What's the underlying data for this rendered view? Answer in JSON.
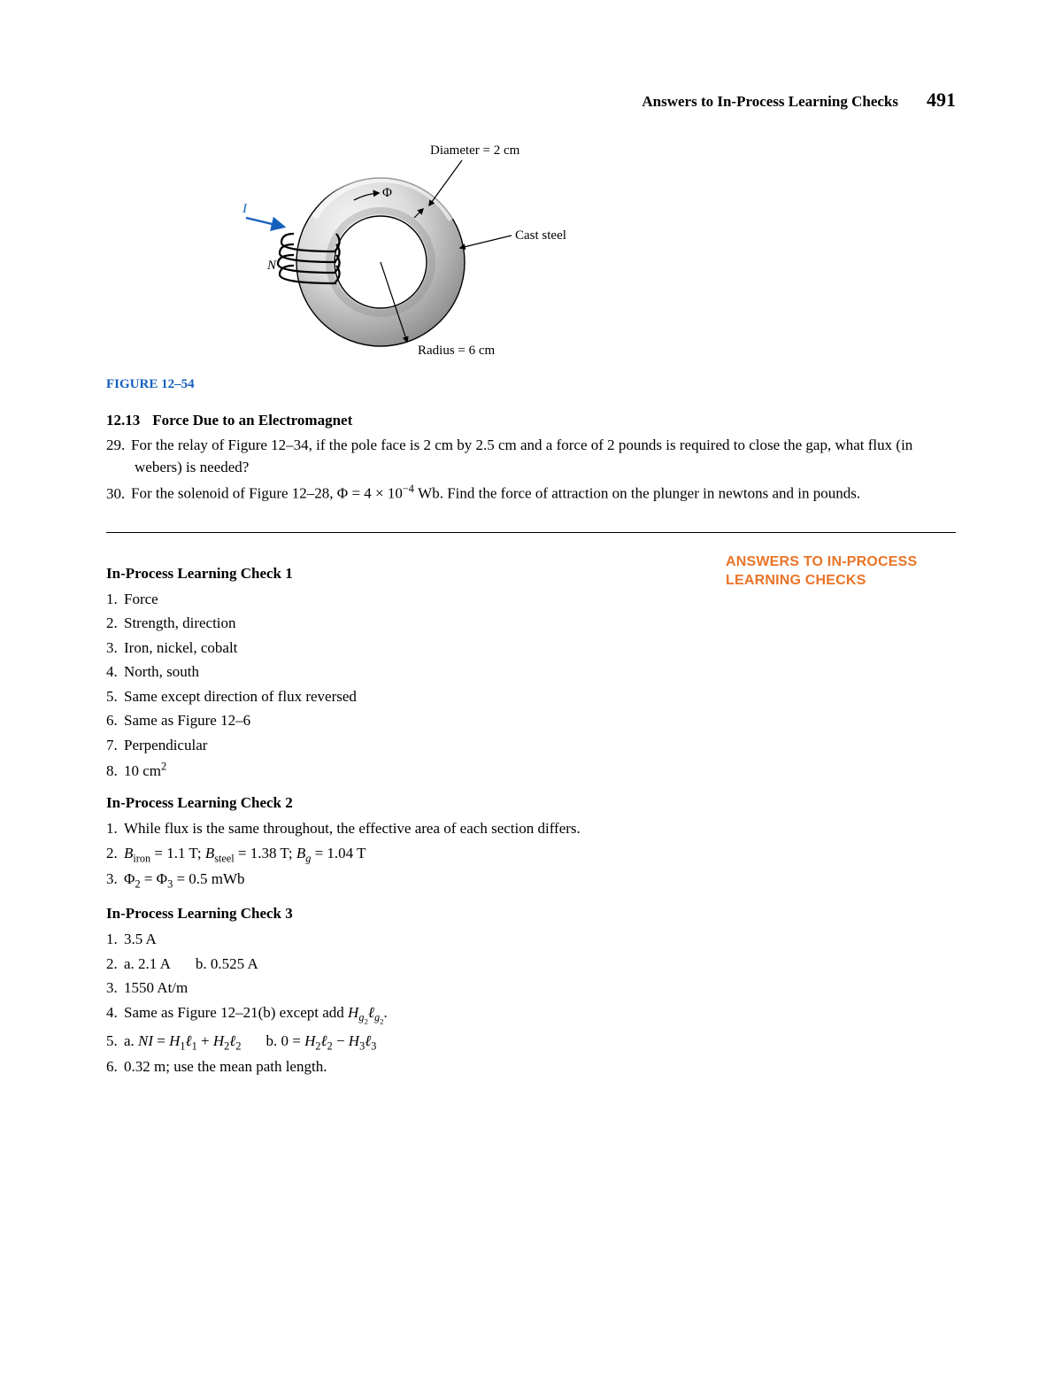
{
  "header": {
    "title": "Answers to In-Process Learning Checks",
    "page_number": "491"
  },
  "figure": {
    "caption": "FIGURE 12–54",
    "diameter_label": "Diameter = 2 cm",
    "radius_label": "Radius = 6 cm",
    "material_label": "Cast steel",
    "flux_label": "Φ",
    "current_label": "I",
    "turns_label": "N",
    "colors": {
      "ring_inner": "#d0d0d0",
      "ring_shade": "#9a9a9a",
      "ring_light": "#f3f3f3",
      "outline": "#000000",
      "current_arrow": "#1560bd"
    }
  },
  "section": {
    "number": "12.13",
    "title": "Force Due to an Electromagnet",
    "problems": [
      {
        "n": "29.",
        "text": "For the relay of Figure 12–34, if the pole face is 2 cm by 2.5 cm and a force of 2 pounds is required to close the gap, what flux (in webers) is needed?"
      },
      {
        "n": "30.",
        "text_pre": "For the solenoid of Figure 12–28, Φ = 4 × 10",
        "exp": "−4",
        "text_post": " Wb. Find the force of attraction on the plunger in newtons and in pounds."
      }
    ]
  },
  "sidebar_heading": "ANSWERS TO IN-PROCESS LEARNING CHECKS",
  "checks": [
    {
      "heading": "In-Process Learning Check 1",
      "items": [
        {
          "n": "1.",
          "html": "Force"
        },
        {
          "n": "2.",
          "html": "Strength, direction"
        },
        {
          "n": "3.",
          "html": "Iron, nickel, cobalt"
        },
        {
          "n": "4.",
          "html": "North, south"
        },
        {
          "n": "5.",
          "html": "Same except direction of flux reversed"
        },
        {
          "n": "6.",
          "html": "Same as Figure 12–6"
        },
        {
          "n": "7.",
          "html": "Perpendicular"
        },
        {
          "n": "8.",
          "html": "10 cm<span class=\"sup\">2</span>"
        }
      ]
    },
    {
      "heading": "In-Process Learning Check 2",
      "items": [
        {
          "n": "1.",
          "html": "While flux is the same throughout, the effective area of each section differs."
        },
        {
          "n": "2.",
          "html": "<span class=\"ital\">B</span><span class=\"sub\">iron</span> = 1.1 T; <span class=\"ital\">B</span><span class=\"sub\">steel</span> = 1.38 T; <span class=\"ital\">B</span><span class=\"sub\"><span class=\"ital\">g</span></span> = 1.04 T"
        },
        {
          "n": "3.",
          "html": "Φ<span class=\"sub\">2</span> = Φ<span class=\"sub\">3</span> = 0.5 mWb"
        }
      ]
    },
    {
      "heading": "In-Process Learning Check 3",
      "items": [
        {
          "n": "1.",
          "html": "3.5 A"
        },
        {
          "n": "2.",
          "html": "a.  2.1 A<span class=\"gap\"></span>b.  0.525 A"
        },
        {
          "n": "3.",
          "html": "1550 At/m"
        },
        {
          "n": "4.",
          "html": "Same as Figure 12–21(b) except add <span class=\"ital\">H</span><span class=\"sub\"><span class=\"ital\">g</span><span class=\"sub\">2</span></span><span class=\"ital\">ℓ</span><span class=\"sub\"><span class=\"ital\">g</span><span class=\"sub\">2</span></span>."
        },
        {
          "n": "5.",
          "html": "a.  <span class=\"ital\">NI</span> = <span class=\"ital\">H</span><span class=\"sub\">1</span><span class=\"ital\">ℓ</span><span class=\"sub\">1</span> + <span class=\"ital\">H</span><span class=\"sub\">2</span><span class=\"ital\">ℓ</span><span class=\"sub\">2</span><span class=\"gap\"></span>b.  0 = <span class=\"ital\">H</span><span class=\"sub\">2</span><span class=\"ital\">ℓ</span><span class=\"sub\">2</span> − <span class=\"ital\">H</span><span class=\"sub\">3</span><span class=\"ital\">ℓ</span><span class=\"sub\">3</span>"
        },
        {
          "n": "6.",
          "html": "0.32 m; use the mean path length."
        }
      ]
    }
  ]
}
